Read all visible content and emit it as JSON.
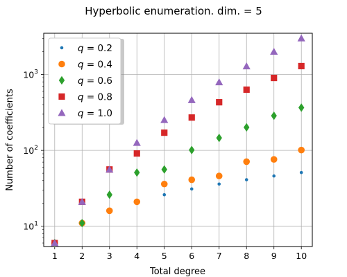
{
  "chart_data": {
    "type": "scatter",
    "title": "Hyperbolic enumeration. dim. = 5",
    "xlabel": "Total degree",
    "ylabel": "Number of coefficients",
    "x": [
      1,
      2,
      3,
      4,
      5,
      6,
      7,
      8,
      9,
      10
    ],
    "x_ticks": [
      "1",
      "2",
      "3",
      "4",
      "5",
      "6",
      "7",
      "8",
      "9",
      "10"
    ],
    "y_scale": "log",
    "y_ticks": [
      {
        "value": 10,
        "base": "10",
        "exp": "1"
      },
      {
        "value": 100,
        "base": "10",
        "exp": "2"
      },
      {
        "value": 1000,
        "base": "10",
        "exp": "3"
      }
    ],
    "xlim": [
      0.6,
      10.4
    ],
    "ylim": [
      5.4,
      3500
    ],
    "grid": true,
    "legend_position": "top-left",
    "series": [
      {
        "name": "q = 0.2",
        "label_var": "q",
        "label_value": "0.2",
        "marker": "small-circle",
        "color": "#1f77b4",
        "values": [
          6,
          11,
          16,
          21,
          26,
          31,
          36,
          41,
          46,
          51
        ]
      },
      {
        "name": "q = 0.4",
        "label_var": "q",
        "label_value": "0.4",
        "marker": "circle",
        "color": "#ff7f0e",
        "values": [
          6,
          11,
          16,
          21,
          36,
          41,
          46,
          71,
          76,
          101
        ]
      },
      {
        "name": "q = 0.6",
        "label_var": "q",
        "label_value": "0.6",
        "marker": "diamond",
        "color": "#2ca02c",
        "values": [
          6,
          11,
          26,
          51,
          56,
          101,
          146,
          201,
          286,
          366
        ]
      },
      {
        "name": "q = 0.8",
        "label_var": "q",
        "label_value": "0.8",
        "marker": "square",
        "color": "#d62728",
        "values": [
          6,
          21,
          56,
          91,
          171,
          271,
          431,
          631,
          901,
          1291
        ]
      },
      {
        "name": "q = 1.0",
        "label_var": "q",
        "label_value": "1.0",
        "marker": "triangle",
        "color": "#9467bd",
        "values": [
          6,
          21,
          56,
          126,
          252,
          462,
          792,
          1287,
          2002,
          3003
        ]
      }
    ]
  }
}
